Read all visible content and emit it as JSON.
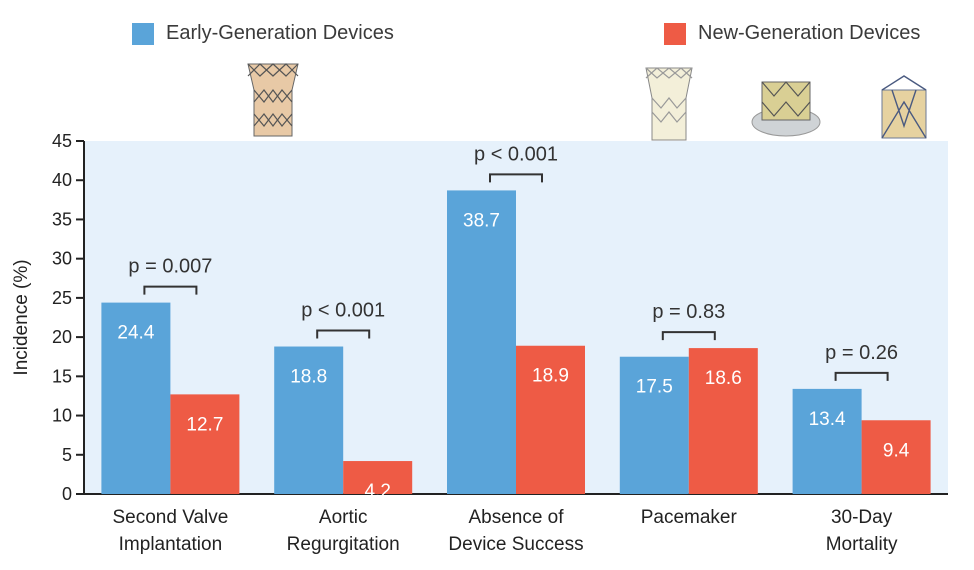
{
  "legend": {
    "early": "Early-Generation Devices",
    "new": "New-Generation Devices"
  },
  "colors": {
    "early": "#5aa4d9",
    "new": "#ee5b45",
    "plot_bg": "#e6f1fb",
    "axis": "#222222"
  },
  "images": [
    {
      "name": "early-generation-valve-icon"
    },
    {
      "name": "new-generation-valve-icon-1"
    },
    {
      "name": "new-generation-valve-icon-2"
    },
    {
      "name": "new-generation-valve-icon-3"
    }
  ],
  "chart_data": {
    "type": "bar",
    "ylabel": "Incidence (%)",
    "xlabel": "",
    "ylim": [
      0,
      45
    ],
    "yticks": [
      0,
      5,
      10,
      15,
      20,
      25,
      30,
      35,
      40,
      45
    ],
    "categories": [
      [
        "Second Valve",
        "Implantation"
      ],
      [
        "Aortic",
        "Regurgitation"
      ],
      [
        "Absence of",
        "Device Success"
      ],
      [
        "Pacemaker"
      ],
      [
        "30-Day",
        "Mortality"
      ]
    ],
    "series": [
      {
        "name": "Early-Generation Devices",
        "values": [
          24.4,
          18.8,
          38.7,
          17.5,
          13.4
        ]
      },
      {
        "name": "New-Generation Devices",
        "values": [
          12.7,
          4.2,
          18.9,
          18.6,
          9.4
        ]
      }
    ],
    "data_labels": [
      [
        "24.4",
        "12.7"
      ],
      [
        "18.8",
        "4.2"
      ],
      [
        "38.7",
        "18.9"
      ],
      [
        "17.5",
        "18.6"
      ],
      [
        "13.4",
        "9.4"
      ]
    ],
    "annotations": [
      "p = 0.007",
      "p < 0.001",
      "p < 0.001",
      "p = 0.83",
      "p = 0.26"
    ],
    "grid": false,
    "legend_position": "top"
  }
}
